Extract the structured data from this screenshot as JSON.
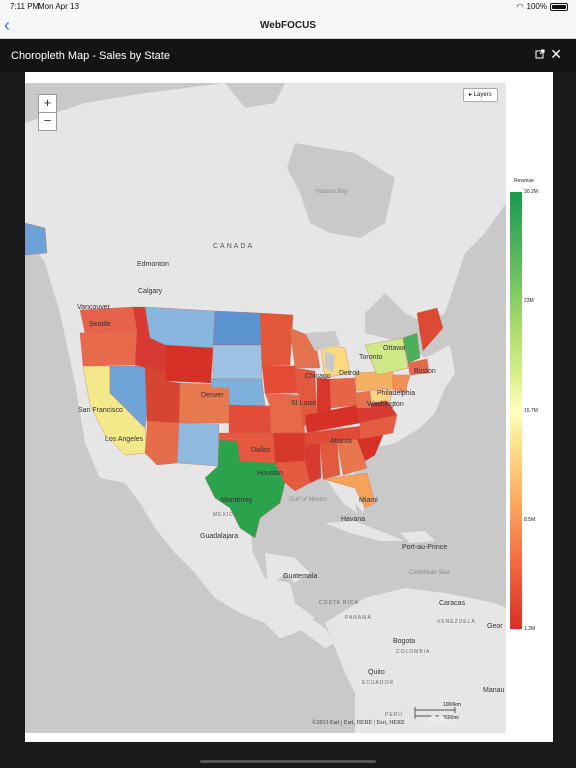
{
  "status": {
    "time": "7:11 PM",
    "date": "Mon Apr 13",
    "battery": "100%"
  },
  "nav": {
    "back": "‹",
    "title": "WebFOCUS"
  },
  "modal": {
    "title": "Choropleth Map - Sales by State",
    "close": "✕"
  },
  "map": {
    "zoom_in": "+",
    "zoom_out": "−",
    "layers_button": "▸ Layers",
    "attribution": "©2013 Esri | Esri, HERE | Esri, HERE",
    "esri_logo": "esri",
    "scale_km": "1000km",
    "scale_mi": "600mi",
    "labels": {
      "canada": "CANADA",
      "hudson_bay": "Hudson Bay",
      "edmonton": "Edmonton",
      "calgary": "Calgary",
      "vancouver": "Vancouver",
      "seattle": "Seattle",
      "ottawa": "Ottawa",
      "toronto": "Toronto",
      "boston": "Boston",
      "chicago": "Chicago",
      "detroit": "Detroit",
      "philadelphia": "Philadelphia",
      "washington": "Washington",
      "denver": "Denver",
      "st_louis": "St Louis",
      "san_francisco": "San Francisco",
      "los_angeles": "Los Angeles",
      "dallas": "Dallas",
      "atlanta": "Atlanta",
      "houston": "Houston",
      "miami": "Miami",
      "monterrey": "Monterrey",
      "gulf_of_mexico": "Gulf of Mexico",
      "mexico": "MÉXICO",
      "havana": "Havana",
      "guadalajara": "Guadalajara",
      "port_au_prince": "Port-au-Prince",
      "caribbean_sea": "Caribbean Sea",
      "guatemala": "Guatemala",
      "costa_rica": "COSTA RICA",
      "panama": "PANAMÁ",
      "caracas": "Caracas",
      "venezuela": "VENEZUELA",
      "georgetown": "Geor",
      "bogota": "Bogota",
      "colombia": "COLOMBIA",
      "quito": "Quito",
      "ecuador": "ECUADOR",
      "manaus": "Manau",
      "peru": "PERÚ"
    }
  },
  "legend": {
    "title": "Revenue",
    "ticks": [
      "30.2M",
      "23M",
      "15.7M",
      "8.5M",
      "1.2M"
    ],
    "colors": {
      "high": "#1a9850",
      "mid": "#ffffbf",
      "low": "#d73027"
    }
  }
}
